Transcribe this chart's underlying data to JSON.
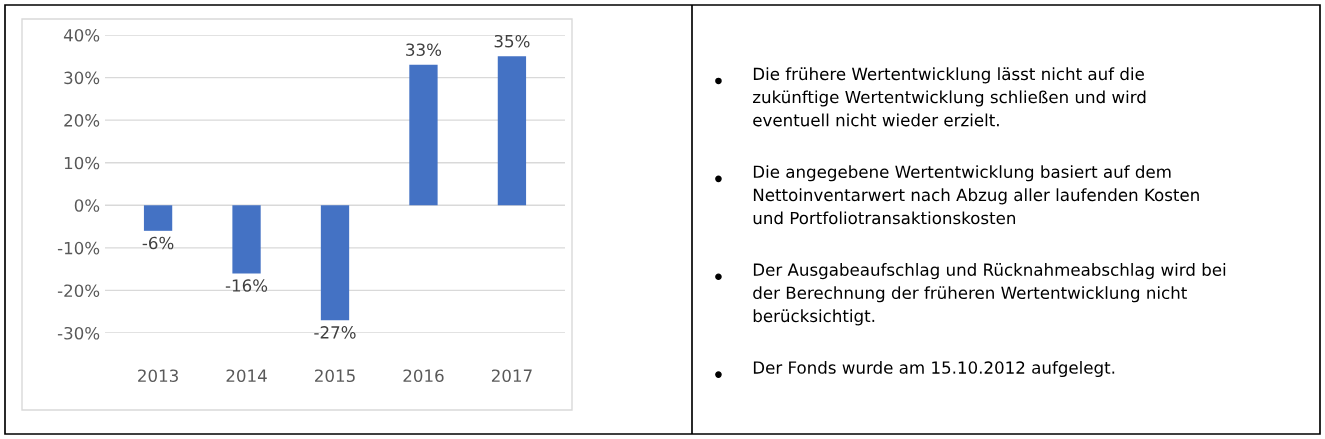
{
  "chart_data": [
    {
      "type": "bar",
      "categories": [
        "2013",
        "2014",
        "2015",
        "2016",
        "2017"
      ],
      "values": [
        -6,
        -16,
        -27,
        33,
        35
      ],
      "color": "#4472c4",
      "value_labels": [
        "-6%",
        "-16%",
        "-27%",
        "33%",
        "35%"
      ],
      "ylim": [
        -30,
        40
      ],
      "yticks": [
        {
          "value": 40,
          "label": "40%"
        },
        {
          "value": 30,
          "label": "30%"
        },
        {
          "value": 20,
          "label": "20%"
        },
        {
          "value": 10,
          "label": "10%"
        },
        {
          "value": 0,
          "label": "0%"
        },
        {
          "value": -10,
          "label": "-10%"
        },
        {
          "value": -20,
          "label": "-20%"
        },
        {
          "value": -30,
          "label": "-30%"
        }
      ],
      "grid": "y",
      "legend": false
    },
    {
      "type": "other",
      "annotations": [
        "Die frühere Wertentwicklung lässt nicht auf die\nzukünftige Wertentwicklung schließen und wird\neventuell nicht wieder erzielt.",
        "Die angegebene Wertentwicklung basiert auf dem\nNettoinventarwert nach Abzug aller laufenden Kosten\nund Portfoliotransaktionskosten",
        "Der Ausgabeaufschlag und Rücknahmeabschlag wird bei\nder Berechnung der früheren Wertentwicklung nicht\nberücksichtigt.",
        "Der Fonds wurde am 15.10.2012 aufgelegt."
      ]
    }
  ]
}
